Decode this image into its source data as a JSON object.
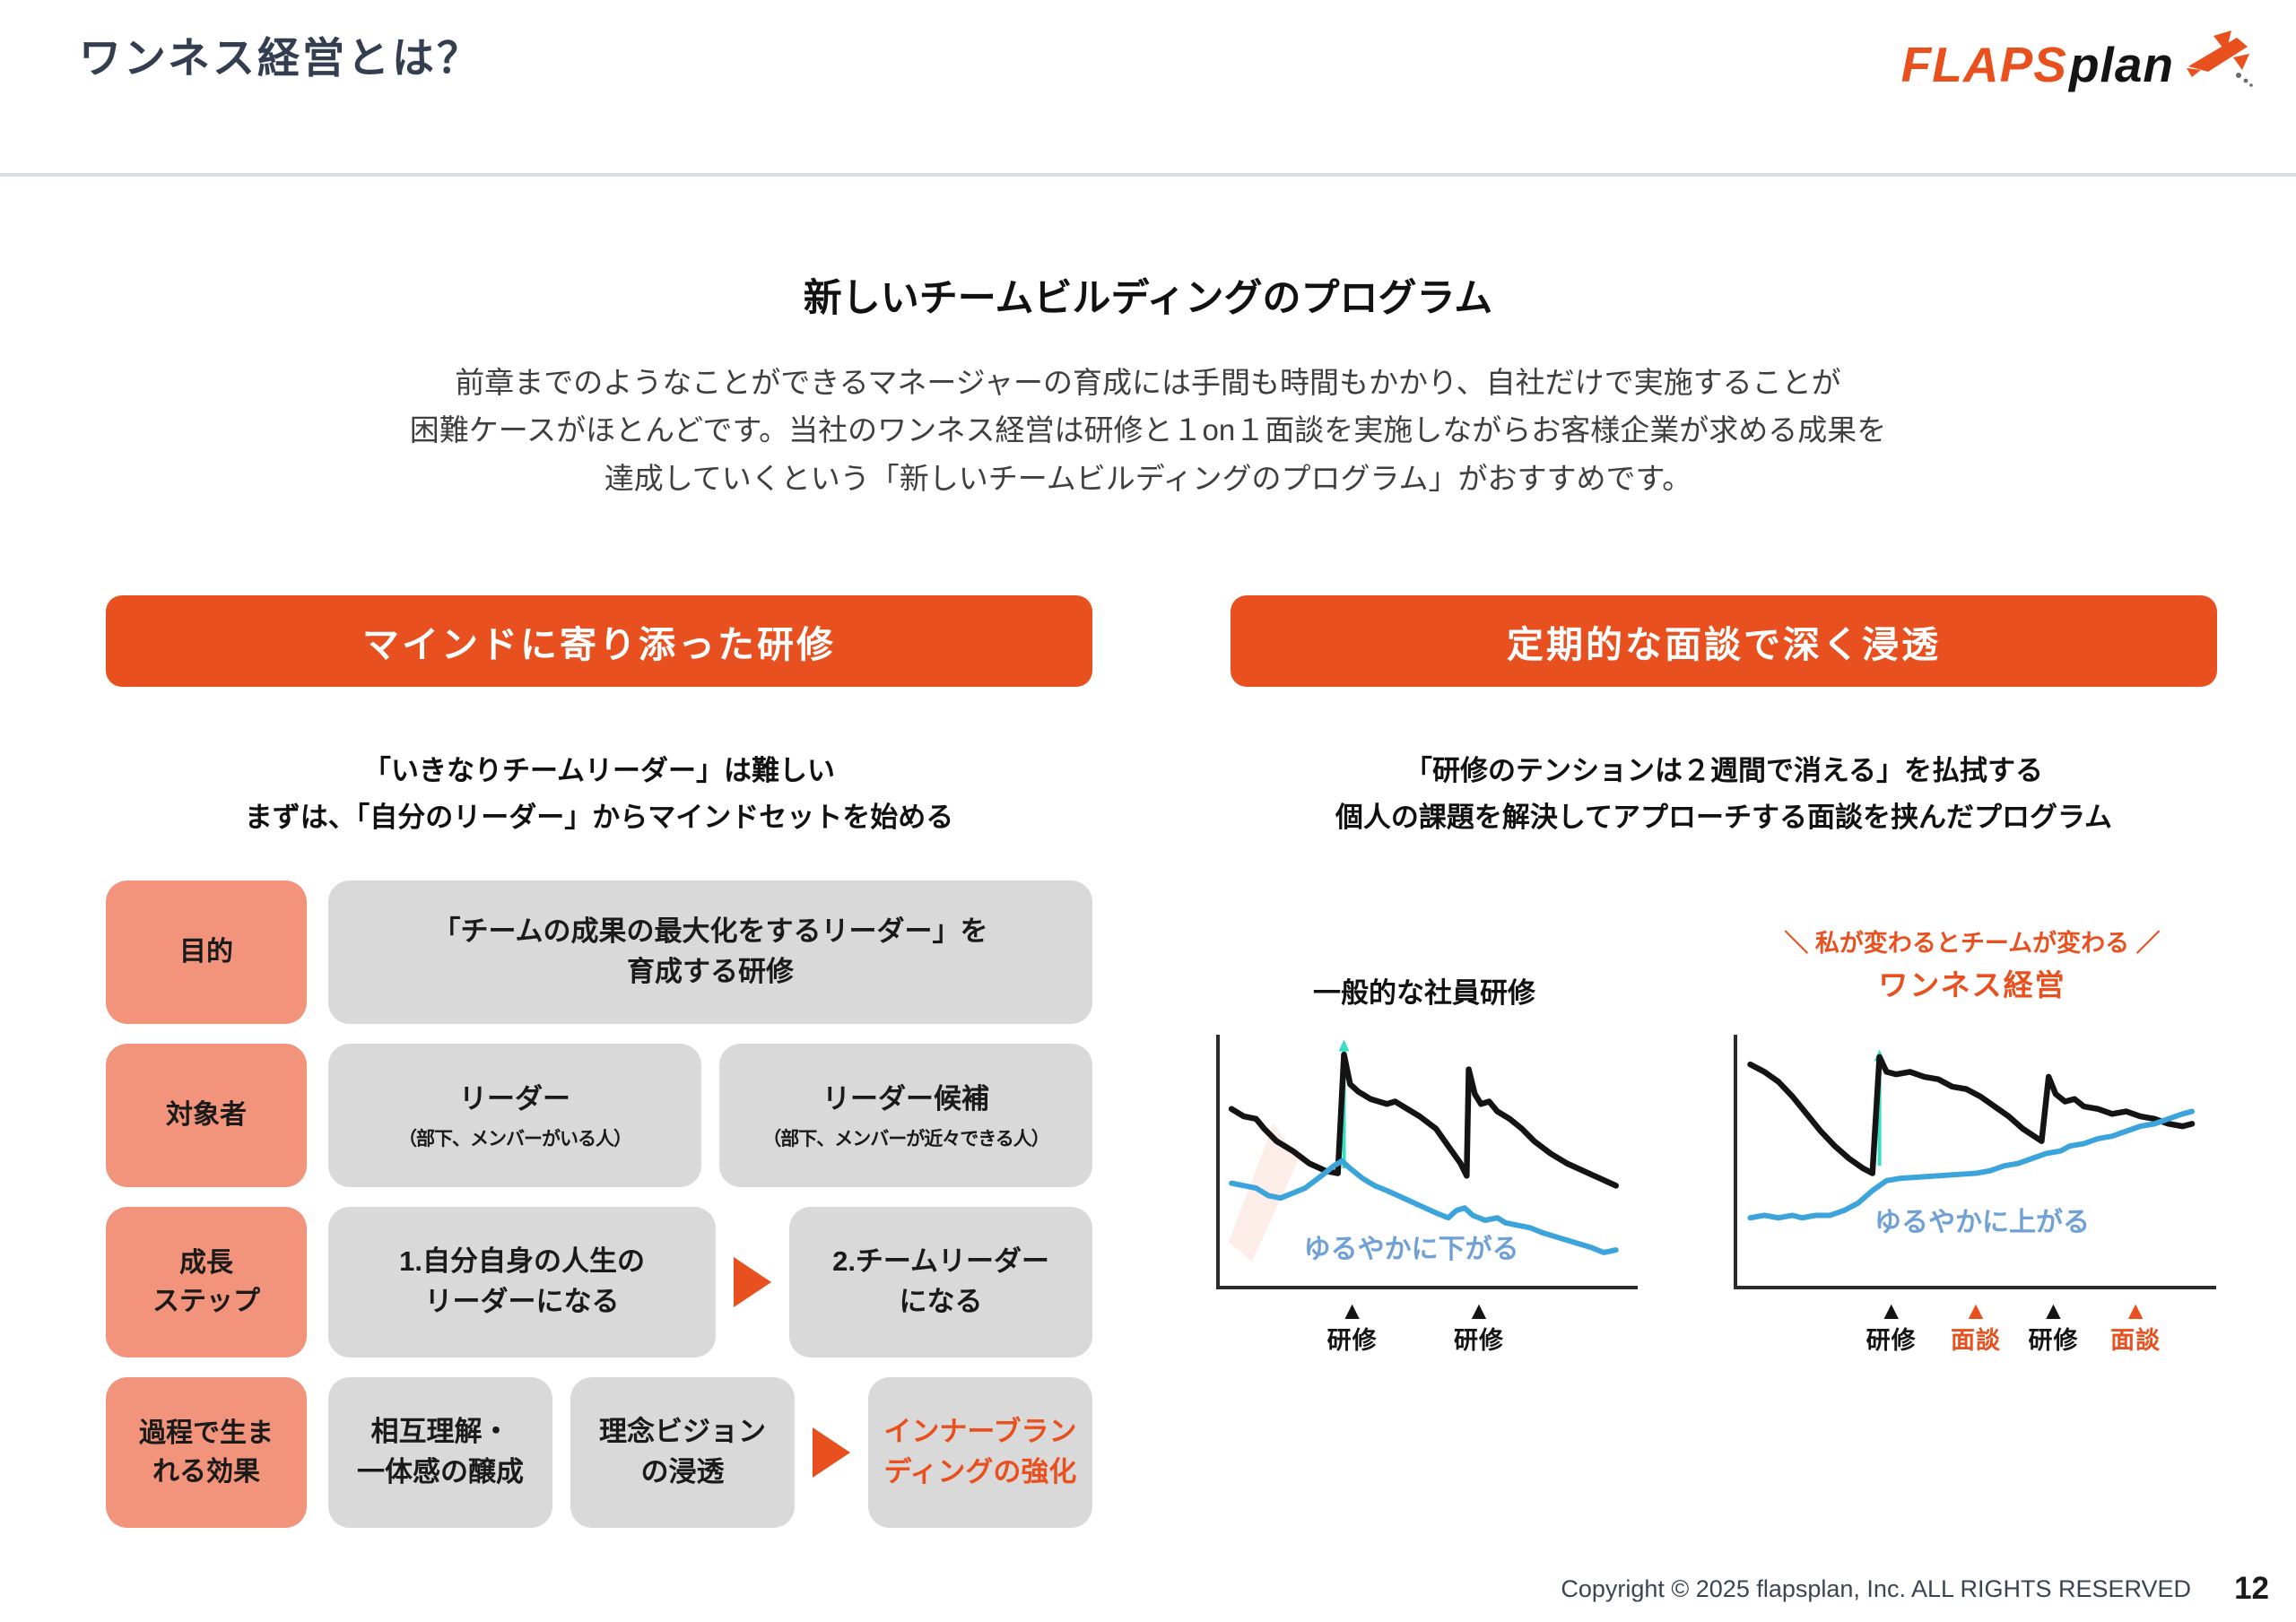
{
  "header": {
    "title": "ワンネス経営とは？",
    "logo": {
      "flaps": "FLAPS",
      "plan": "plan"
    },
    "accent_color": "#E8511F"
  },
  "intro": {
    "heading": "新しいチームビルディングのプログラム",
    "lines": [
      "前章までのようなことができるマネージャーの育成には手間も時間もかかり、自社だけで実施することが",
      "困難ケースがほとんどです。当社のワンネス経営は研修と１on１面談を実施しながらお客様企業が求める成果を",
      "達成していくという「新しいチームビルディングのプログラム」がおすすめです。"
    ]
  },
  "left": {
    "banner": "マインドに寄り添った研修",
    "subtitle": [
      "「いきなりチームリーダー」は難しい",
      "まずは、「自分のリーダー」からマインドセットを始める"
    ],
    "rows": [
      {
        "label": "目的",
        "cells": [
          {
            "text": "「チームの成果の最大化をするリーダー」を\n育成する研修"
          }
        ]
      },
      {
        "label": "対象者",
        "cells": [
          {
            "text": "リーダー",
            "sub": "（部下、メンバーがいる人）"
          },
          {
            "text": "リーダー候補",
            "sub": "（部下、メンバーが近々できる人）"
          }
        ]
      },
      {
        "label": "成長\nステップ",
        "cells": [
          {
            "text": "1.自分自身の人生の\nリーダーになる"
          },
          {
            "arrow": true
          },
          {
            "text": "2.チームリーダー\nになる"
          }
        ]
      },
      {
        "label": "過程で生ま\nれる効果",
        "cells": [
          {
            "text": "相互理解・\n一体感の醸成"
          },
          {
            "text": "理念ビジョン\nの浸透"
          },
          {
            "arrow": true
          },
          {
            "text": "インナーブラン\nディングの強化",
            "accent": true
          }
        ]
      }
    ]
  },
  "right": {
    "banner": "定期的な面談で深く浸透",
    "subtitle": [
      "「研修のテンションは２週間で消える」を払拭する",
      "個人の課題を解決してアプローチする面談を挟んだプログラム"
    ]
  },
  "chart_data": [
    {
      "type": "line",
      "title": "一般的な社員研修",
      "xlabel": "",
      "ylabel": "",
      "grid": false,
      "legend": "none",
      "annotation": {
        "text": "ゆるやかに下がる",
        "x": 0.47,
        "y": 0.8,
        "color": "#6FA0D6"
      },
      "arrow": {
        "x": 0.295,
        "y1": 0.54,
        "y2": 0.02,
        "color": "#35DEC4"
      },
      "series": [
        {
          "name": "black-line",
          "color": "#141414",
          "width": 6.5,
          "points": [
            [
              0.02,
              0.3
            ],
            [
              0.05,
              0.33
            ],
            [
              0.08,
              0.34
            ],
            [
              0.1,
              0.38
            ],
            [
              0.13,
              0.43
            ],
            [
              0.17,
              0.47
            ],
            [
              0.21,
              0.52
            ],
            [
              0.25,
              0.55
            ],
            [
              0.28,
              0.56
            ],
            [
              0.295,
              0.08
            ],
            [
              0.31,
              0.2
            ],
            [
              0.33,
              0.23
            ],
            [
              0.36,
              0.26
            ],
            [
              0.4,
              0.28
            ],
            [
              0.42,
              0.27
            ],
            [
              0.45,
              0.3
            ],
            [
              0.48,
              0.33
            ],
            [
              0.52,
              0.38
            ],
            [
              0.55,
              0.45
            ],
            [
              0.58,
              0.52
            ],
            [
              0.595,
              0.57
            ],
            [
              0.6,
              0.14
            ],
            [
              0.615,
              0.24
            ],
            [
              0.63,
              0.28
            ],
            [
              0.65,
              0.27
            ],
            [
              0.67,
              0.31
            ],
            [
              0.7,
              0.34
            ],
            [
              0.73,
              0.38
            ],
            [
              0.76,
              0.43
            ],
            [
              0.8,
              0.48
            ],
            [
              0.84,
              0.52
            ],
            [
              0.88,
              0.55
            ],
            [
              0.92,
              0.58
            ],
            [
              0.96,
              0.61
            ]
          ]
        },
        {
          "name": "blue-line",
          "color": "#3BA5DB",
          "width": 6,
          "points": [
            [
              0.02,
              0.6
            ],
            [
              0.05,
              0.61
            ],
            [
              0.08,
              0.62
            ],
            [
              0.11,
              0.65
            ],
            [
              0.14,
              0.66
            ],
            [
              0.17,
              0.64
            ],
            [
              0.2,
              0.62
            ],
            [
              0.24,
              0.57
            ],
            [
              0.27,
              0.53
            ],
            [
              0.29,
              0.51
            ],
            [
              0.31,
              0.54
            ],
            [
              0.34,
              0.58
            ],
            [
              0.37,
              0.61
            ],
            [
              0.4,
              0.63
            ],
            [
              0.44,
              0.66
            ],
            [
              0.48,
              0.69
            ],
            [
              0.52,
              0.72
            ],
            [
              0.55,
              0.74
            ],
            [
              0.57,
              0.71
            ],
            [
              0.59,
              0.7
            ],
            [
              0.61,
              0.73
            ],
            [
              0.64,
              0.75
            ],
            [
              0.67,
              0.74
            ],
            [
              0.69,
              0.76
            ],
            [
              0.72,
              0.77
            ],
            [
              0.75,
              0.78
            ],
            [
              0.78,
              0.8
            ],
            [
              0.82,
              0.82
            ],
            [
              0.86,
              0.84
            ],
            [
              0.9,
              0.86
            ],
            [
              0.93,
              0.88
            ],
            [
              0.96,
              0.87
            ]
          ]
        }
      ],
      "markers": [
        {
          "pos": 0.315,
          "label": "研修",
          "color": "#141414"
        },
        {
          "pos": 0.625,
          "label": "研修",
          "color": "#141414"
        }
      ]
    },
    {
      "type": "line",
      "tagline": "＼ 私が変わるとチームが変わる ／",
      "title": "ワンネス経営",
      "xlabel": "",
      "ylabel": "",
      "grid": false,
      "legend": "none",
      "annotation": {
        "text": "ゆるやかに上がる",
        "x": 0.52,
        "y": 0.7,
        "color": "#6FA0D6"
      },
      "arrow": {
        "x": 0.295,
        "y1": 0.53,
        "y2": 0.06,
        "color": "#35DEC4"
      },
      "series": [
        {
          "name": "black-line",
          "color": "#141414",
          "width": 6.5,
          "points": [
            [
              0.02,
              0.12
            ],
            [
              0.05,
              0.15
            ],
            [
              0.08,
              0.19
            ],
            [
              0.11,
              0.25
            ],
            [
              0.14,
              0.32
            ],
            [
              0.17,
              0.39
            ],
            [
              0.2,
              0.45
            ],
            [
              0.23,
              0.5
            ],
            [
              0.26,
              0.54
            ],
            [
              0.28,
              0.56
            ],
            [
              0.295,
              0.09
            ],
            [
              0.31,
              0.15
            ],
            [
              0.33,
              0.16
            ],
            [
              0.36,
              0.15
            ],
            [
              0.39,
              0.17
            ],
            [
              0.42,
              0.18
            ],
            [
              0.45,
              0.21
            ],
            [
              0.48,
              0.22
            ],
            [
              0.51,
              0.25
            ],
            [
              0.54,
              0.29
            ],
            [
              0.57,
              0.33
            ],
            [
              0.6,
              0.38
            ],
            [
              0.64,
              0.43
            ],
            [
              0.655,
              0.17
            ],
            [
              0.67,
              0.24
            ],
            [
              0.69,
              0.27
            ],
            [
              0.71,
              0.26
            ],
            [
              0.73,
              0.29
            ],
            [
              0.76,
              0.3
            ],
            [
              0.79,
              0.32
            ],
            [
              0.82,
              0.31
            ],
            [
              0.85,
              0.33
            ],
            [
              0.88,
              0.34
            ],
            [
              0.91,
              0.36
            ],
            [
              0.94,
              0.37
            ],
            [
              0.96,
              0.36
            ]
          ]
        },
        {
          "name": "blue-line",
          "color": "#3BA5DB",
          "width": 6,
          "points": [
            [
              0.02,
              0.74
            ],
            [
              0.05,
              0.73
            ],
            [
              0.08,
              0.74
            ],
            [
              0.11,
              0.73
            ],
            [
              0.13,
              0.74
            ],
            [
              0.16,
              0.73
            ],
            [
              0.19,
              0.73
            ],
            [
              0.22,
              0.71
            ],
            [
              0.25,
              0.68
            ],
            [
              0.28,
              0.63
            ],
            [
              0.31,
              0.59
            ],
            [
              0.34,
              0.58
            ],
            [
              0.38,
              0.575
            ],
            [
              0.42,
              0.57
            ],
            [
              0.46,
              0.565
            ],
            [
              0.5,
              0.56
            ],
            [
              0.53,
              0.55
            ],
            [
              0.56,
              0.53
            ],
            [
              0.59,
              0.52
            ],
            [
              0.62,
              0.5
            ],
            [
              0.65,
              0.48
            ],
            [
              0.68,
              0.47
            ],
            [
              0.7,
              0.45
            ],
            [
              0.73,
              0.44
            ],
            [
              0.76,
              0.42
            ],
            [
              0.79,
              0.41
            ],
            [
              0.82,
              0.39
            ],
            [
              0.85,
              0.37
            ],
            [
              0.88,
              0.36
            ],
            [
              0.91,
              0.34
            ],
            [
              0.94,
              0.32
            ],
            [
              0.96,
              0.31
            ]
          ]
        }
      ],
      "markers": [
        {
          "pos": 0.32,
          "label": "研修",
          "color": "#141414"
        },
        {
          "pos": 0.5,
          "label": "面談",
          "color": "#E8511F"
        },
        {
          "pos": 0.665,
          "label": "研修",
          "color": "#141414"
        },
        {
          "pos": 0.84,
          "label": "面談",
          "color": "#E8511F"
        }
      ]
    }
  ],
  "footer": {
    "copyright": "Copyright © 2025 flapsplan, Inc. ALL RIGHTS RESERVED",
    "page": "12"
  }
}
